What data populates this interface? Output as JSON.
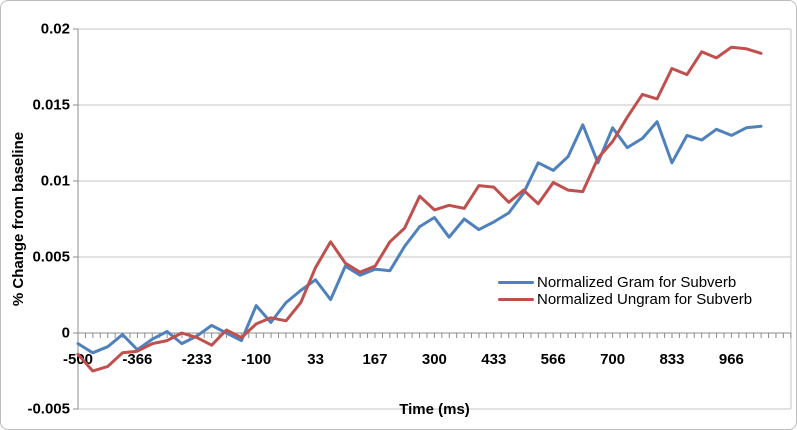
{
  "chart_data": {
    "type": "line",
    "title": "",
    "xlabel": "Time (ms)",
    "ylabel": "% Change from baseline",
    "ylim": [
      -0.005,
      0.02
    ],
    "grid": true,
    "legend_position": "inside-right",
    "y_tick_labels": [
      "0.02",
      "0.015",
      "0.01",
      "0.005",
      "0",
      "-0.005"
    ],
    "x_tick_labels": [
      "-500",
      "-366",
      "-233",
      "-100",
      "33",
      "167",
      "300",
      "433",
      "566",
      "700",
      "833",
      "966"
    ],
    "x": [
      -500,
      -467,
      -433,
      -400,
      -367,
      -333,
      -300,
      -267,
      -233,
      -200,
      -167,
      -133,
      -100,
      -67,
      -33,
      0,
      33,
      67,
      100,
      133,
      167,
      200,
      233,
      267,
      300,
      333,
      367,
      400,
      433,
      467,
      500,
      533,
      567,
      600,
      633,
      667,
      700,
      733,
      767,
      800,
      833,
      867,
      900,
      933,
      967,
      1000,
      1033
    ],
    "series": [
      {
        "name": "Normalized Gram for Subverb",
        "color": "#4F81BD",
        "values": [
          -0.0007,
          -0.0013,
          -0.0009,
          -0.0001,
          -0.0011,
          -0.0004,
          0.0001,
          -0.0007,
          -0.0002,
          0.0005,
          0.0,
          -0.0005,
          0.0018,
          0.0007,
          0.002,
          0.0028,
          0.0035,
          0.0022,
          0.0044,
          0.0038,
          0.0042,
          0.0041,
          0.0057,
          0.007,
          0.0076,
          0.0063,
          0.0075,
          0.0068,
          0.0073,
          0.0079,
          0.0092,
          0.0112,
          0.0107,
          0.0116,
          0.0137,
          0.0112,
          0.0135,
          0.0122,
          0.0128,
          0.0139,
          0.0112,
          0.013,
          0.0127,
          0.0134,
          0.013,
          0.0135,
          0.0136
        ]
      },
      {
        "name": "Normalized Ungram for Subverb",
        "color": "#C0504D",
        "values": [
          -0.0014,
          -0.0025,
          -0.0022,
          -0.0013,
          -0.0012,
          -0.0007,
          -0.0005,
          0.0,
          -0.0003,
          -0.0008,
          0.0002,
          -0.0003,
          0.0006,
          0.001,
          0.0008,
          0.002,
          0.0043,
          0.006,
          0.0046,
          0.004,
          0.0044,
          0.006,
          0.0069,
          0.009,
          0.0081,
          0.0084,
          0.0082,
          0.0097,
          0.0096,
          0.0086,
          0.0094,
          0.0085,
          0.0099,
          0.0094,
          0.0093,
          0.0115,
          0.0126,
          0.0142,
          0.0157,
          0.0154,
          0.0174,
          0.017,
          0.0185,
          0.0181,
          0.0188,
          0.0187,
          0.0184
        ]
      }
    ],
    "colors": {
      "grid": "#C6C6C6",
      "axis": "#8C8C8C",
      "text": "#000000"
    }
  }
}
